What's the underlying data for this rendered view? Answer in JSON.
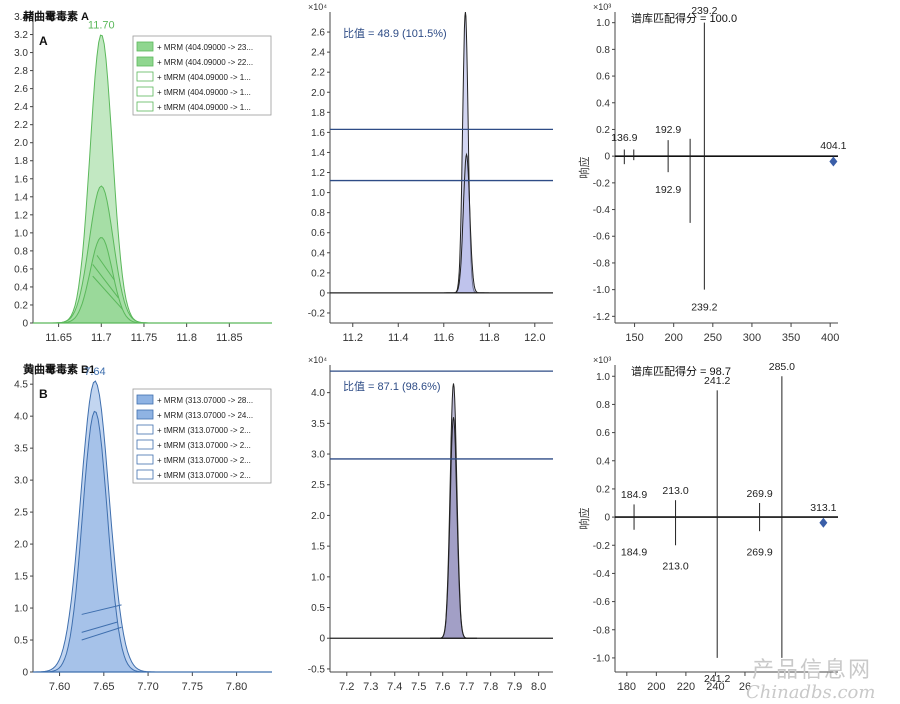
{
  "watermark": {
    "line1": "产品信息网",
    "line2": "Chinadbs.com"
  },
  "chart_data": [
    {
      "id": "A1",
      "type": "area",
      "title": "赭曲霉毒素 A",
      "panel_label": "A",
      "peak_label": "11.70",
      "color": "#5bb85b",
      "fill": "#8fd68f",
      "xlim": [
        11.62,
        11.9
      ],
      "ylim": [
        0,
        3.45
      ],
      "x_ticks": [
        "11.65",
        "11.7",
        "11.75",
        "11.8",
        "11.85"
      ],
      "y_ticks": [
        "0",
        "0.2",
        "0.4",
        "0.6",
        "0.8",
        "1.0",
        "1.2",
        "1.4",
        "1.6",
        "1.8",
        "2.0",
        "2.2",
        "2.4",
        "2.6",
        "2.8",
        "3.0",
        "3.2",
        "3.4"
      ],
      "legend": [
        "+ MRM (404.09000 -> 23...",
        "+ MRM (404.09000 -> 22...",
        "+ tMRM (404.09000 -> 1...",
        "+ tMRM (404.09000 -> 1...",
        "+ tMRM (404.09000 -> 1..."
      ],
      "peaks": [
        {
          "center": 11.7,
          "height": 3.2,
          "sigma": 0.013
        },
        {
          "center": 11.7,
          "height": 1.52,
          "sigma": 0.014
        },
        {
          "center": 11.7,
          "height": 0.95,
          "sigma": 0.013
        }
      ],
      "lines": [
        [
          [
            11.695,
            0.75
          ],
          [
            11.715,
            0.48
          ]
        ],
        [
          [
            11.69,
            0.65
          ],
          [
            11.72,
            0.28
          ]
        ],
        [
          [
            11.69,
            0.52
          ],
          [
            11.725,
            0.15
          ]
        ]
      ]
    },
    {
      "id": "A2",
      "type": "area",
      "ratio_label": "比值 = 48.9 (101.5%)",
      "y_exp": "×10⁴",
      "color": "#222222",
      "fill": "#aeb4e8",
      "xlim": [
        11.1,
        12.08
      ],
      "ylim": [
        -0.3,
        2.8
      ],
      "x_ticks": [
        "11.2",
        "11.4",
        "11.6",
        "11.8",
        "12.0"
      ],
      "y_ticks": [
        "-0.2",
        "0",
        "0.2",
        "0.4",
        "0.6",
        "0.8",
        "1.0",
        "1.2",
        "1.4",
        "1.6",
        "1.8",
        "2.0",
        "2.2",
        "2.4",
        "2.6"
      ],
      "peaks": [
        {
          "center": 11.695,
          "height": 2.8,
          "sigma": 0.012
        },
        {
          "center": 11.7,
          "height": 1.38,
          "sigma": 0.014
        }
      ],
      "hlines": [
        1.63,
        1.12
      ],
      "hline_color": "#2e4c86"
    },
    {
      "id": "A3",
      "type": "bar",
      "title": "谱库匹配得分 = 100.0",
      "y_exp": "×10³",
      "ylabel": "响应",
      "xlim": [
        125,
        410
      ],
      "ylim": [
        -1.25,
        1.08
      ],
      "x_ticks": [
        "150",
        "200",
        "250",
        "300",
        "350",
        "400"
      ],
      "y_ticks": [
        "-1.2",
        "-1.0",
        "-0.8",
        "-0.6",
        "-0.4",
        "-0.2",
        "0",
        "0.2",
        "0.4",
        "0.6",
        "0.8",
        "1.0"
      ],
      "sticks": [
        [
          136.9,
          0.05
        ],
        [
          149,
          0.05
        ],
        [
          192.9,
          0.12
        ],
        [
          221,
          0.13
        ],
        [
          239.2,
          1.0
        ]
      ],
      "sticks_neg": [
        [
          136.9,
          -0.06
        ],
        [
          149,
          -0.03
        ],
        [
          192.9,
          -0.12
        ],
        [
          221,
          -0.5
        ],
        [
          239.2,
          -1.0
        ]
      ],
      "labels": [
        {
          "x": 136.9,
          "y": 0.1,
          "text": "136.9"
        },
        {
          "x": 192.9,
          "y": 0.16,
          "text": "192.9"
        },
        {
          "x": 239.2,
          "y": 1.05,
          "text": "239.2"
        },
        {
          "x": 192.9,
          "y": -0.2,
          "text": "192.9"
        },
        {
          "x": 239.2,
          "y": -1.08,
          "text": "239.2"
        },
        {
          "x": 404.1,
          "y": 0.04,
          "text": "404.1"
        }
      ],
      "precursor": [
        404.1,
        -0.04
      ]
    },
    {
      "id": "B1",
      "type": "area",
      "title": "黄曲霉毒素 B1",
      "panel_label": "B",
      "peak_label": "7.64",
      "color": "#3f6fae",
      "fill": "#8fb3e3",
      "xlim": [
        7.57,
        7.84
      ],
      "ylim": [
        0,
        4.8
      ],
      "x_ticks": [
        "7.60",
        "7.65",
        "7.70",
        "7.75",
        "7.80"
      ],
      "y_ticks": [
        "0",
        "0.5",
        "1.0",
        "1.5",
        "2.0",
        "2.5",
        "3.0",
        "3.5",
        "4.0",
        "4.5"
      ],
      "legend": [
        "+ MRM (313.07000 -> 28...",
        "+ MRM (313.07000 -> 24...",
        "+ tMRM (313.07000 -> 2...",
        "+ tMRM (313.07000 -> 2...",
        "+ tMRM (313.07000 -> 2...",
        "+ tMRM (313.07000 -> 2..."
      ],
      "peaks": [
        {
          "center": 7.64,
          "height": 4.55,
          "sigma": 0.016
        },
        {
          "center": 7.64,
          "height": 4.08,
          "sigma": 0.014
        }
      ],
      "lines": [
        [
          [
            7.625,
            0.9
          ],
          [
            7.67,
            1.05
          ]
        ],
        [
          [
            7.625,
            0.62
          ],
          [
            7.665,
            0.78
          ]
        ],
        [
          [
            7.625,
            0.5
          ],
          [
            7.67,
            0.7
          ]
        ]
      ]
    },
    {
      "id": "B2",
      "type": "area",
      "ratio_label": "比值 = 87.1 (98.6%)",
      "y_exp": "×10⁴",
      "color": "#222222",
      "fill": "#8a86b8",
      "xlim": [
        7.13,
        8.06
      ],
      "ylim": [
        -0.55,
        4.45
      ],
      "x_ticks": [
        "7.2",
        "7.3",
        "7.4",
        "7.5",
        "7.6",
        "7.7",
        "7.8",
        "7.9",
        "8.0"
      ],
      "y_ticks": [
        "-0.5",
        "0",
        "0.5",
        "1.0",
        "1.5",
        "2.0",
        "2.5",
        "3.0",
        "3.5",
        "4.0"
      ],
      "peaks": [
        {
          "center": 7.645,
          "height": 4.15,
          "sigma": 0.014
        },
        {
          "center": 7.645,
          "height": 3.6,
          "sigma": 0.014
        }
      ],
      "hlines": [
        4.35,
        2.92
      ],
      "hline_color": "#2e4c86"
    },
    {
      "id": "B3",
      "type": "bar",
      "title": "谱库匹配得分 = 98.7",
      "y_exp": "×10³",
      "ylabel": "响应",
      "xlim": [
        172,
        323
      ],
      "ylim": [
        -1.1,
        1.08
      ],
      "x_ticks": [
        "180",
        "200",
        "220",
        "240",
        "26"
      ],
      "y_ticks": [
        "-1.0",
        "-0.8",
        "-0.6",
        "-0.4",
        "-0.2",
        "0",
        "0.2",
        "0.4",
        "0.6",
        "0.8",
        "1.0"
      ],
      "sticks": [
        [
          184.9,
          0.09
        ],
        [
          213.0,
          0.12
        ],
        [
          241.2,
          0.9
        ],
        [
          269.9,
          0.1
        ],
        [
          285.0,
          1.0
        ]
      ],
      "sticks_neg": [
        [
          184.9,
          -0.09
        ],
        [
          213.0,
          -0.2
        ],
        [
          241.2,
          -1.0
        ],
        [
          269.9,
          -0.1
        ],
        [
          285.0,
          -1.0
        ]
      ],
      "labels": [
        {
          "x": 184.9,
          "y": 0.12,
          "text": "184.9"
        },
        {
          "x": 213.0,
          "y": 0.15,
          "text": "213.0"
        },
        {
          "x": 241.2,
          "y": 0.93,
          "text": "241.2"
        },
        {
          "x": 269.9,
          "y": 0.13,
          "text": "269.9"
        },
        {
          "x": 285.0,
          "y": 1.03,
          "text": "285.0"
        },
        {
          "x": 313.1,
          "y": 0.03,
          "text": "313.1"
        },
        {
          "x": 184.9,
          "y": -0.2,
          "text": "184.9"
        },
        {
          "x": 213.0,
          "y": -0.3,
          "text": "213.0"
        },
        {
          "x": 269.9,
          "y": -0.2,
          "text": "269.9"
        },
        {
          "x": 241.2,
          "y": -1.1,
          "text": "241.2"
        }
      ],
      "precursor": [
        313.1,
        -0.04
      ]
    }
  ]
}
